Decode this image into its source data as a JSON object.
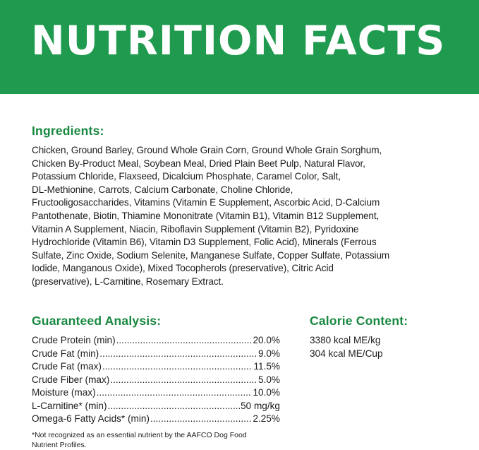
{
  "header": {
    "title": "NUTRITION FACTS",
    "color": "#1f9a4e"
  },
  "ingredients": {
    "heading": "Ingredients:",
    "lines": [
      "Chicken, Ground Barley, Ground Whole Grain Corn, Ground Whole Grain Sorghum,",
      "Chicken By-Product Meal, Soybean Meal, Dried Plain Beet Pulp, Natural Flavor,",
      "Potassium Chloride, Flaxseed, Dicalcium Phosphate, Caramel Color, Salt,",
      "DL-Methionine, Carrots, Calcium Carbonate, Choline Chloride,",
      "Fructooligosaccharides, Vitamins (Vitamin E Supplement, Ascorbic Acid, D-Calcium",
      "Pantothenate, Biotin, Thiamine Mononitrate (Vitamin B1), Vitamin B12 Supplement,",
      "Vitamin A Supplement, Niacin, Riboflavin Supplement (Vitamin B2), Pyridoxine",
      "Hydrochloride (Vitamin B6), Vitamin D3 Supplement, Folic Acid), Minerals (Ferrous",
      "Sulfate, Zinc Oxide, Sodium Selenite, Manganese Sulfate, Copper Sulfate, Potassium",
      "Iodide, Manganous Oxide), Mixed Tocopherols (preservative), Citric Acid",
      "(preservative), L-Carnitine, Rosemary Extract."
    ]
  },
  "analysis": {
    "heading": "Guaranteed Analysis:",
    "rows": [
      {
        "label": "Crude Protein (min)",
        "value": "20.0%"
      },
      {
        "label": "Crude Fat (min)",
        "value": "9.0%"
      },
      {
        "label": "Crude Fat (max)",
        "value": "11.5%"
      },
      {
        "label": "Crude Fiber (max)",
        "value": "5.0%"
      },
      {
        "label": "Moisture (max)",
        "value": "10.0%"
      },
      {
        "label": "L-Carnitine* (min)",
        "value": "50 mg/kg"
      },
      {
        "label": "Omega-6 Fatty Acids* (min)",
        "value": "2.25%"
      }
    ],
    "footnote_lines": [
      "*Not recognized as an essential nutrient by the AAFCO Dog Food",
      "Nutrient Profiles."
    ]
  },
  "calorie": {
    "heading": "Calorie Content:",
    "lines": [
      "3380 kcal ME/kg",
      "304 kcal ME/Cup"
    ]
  }
}
